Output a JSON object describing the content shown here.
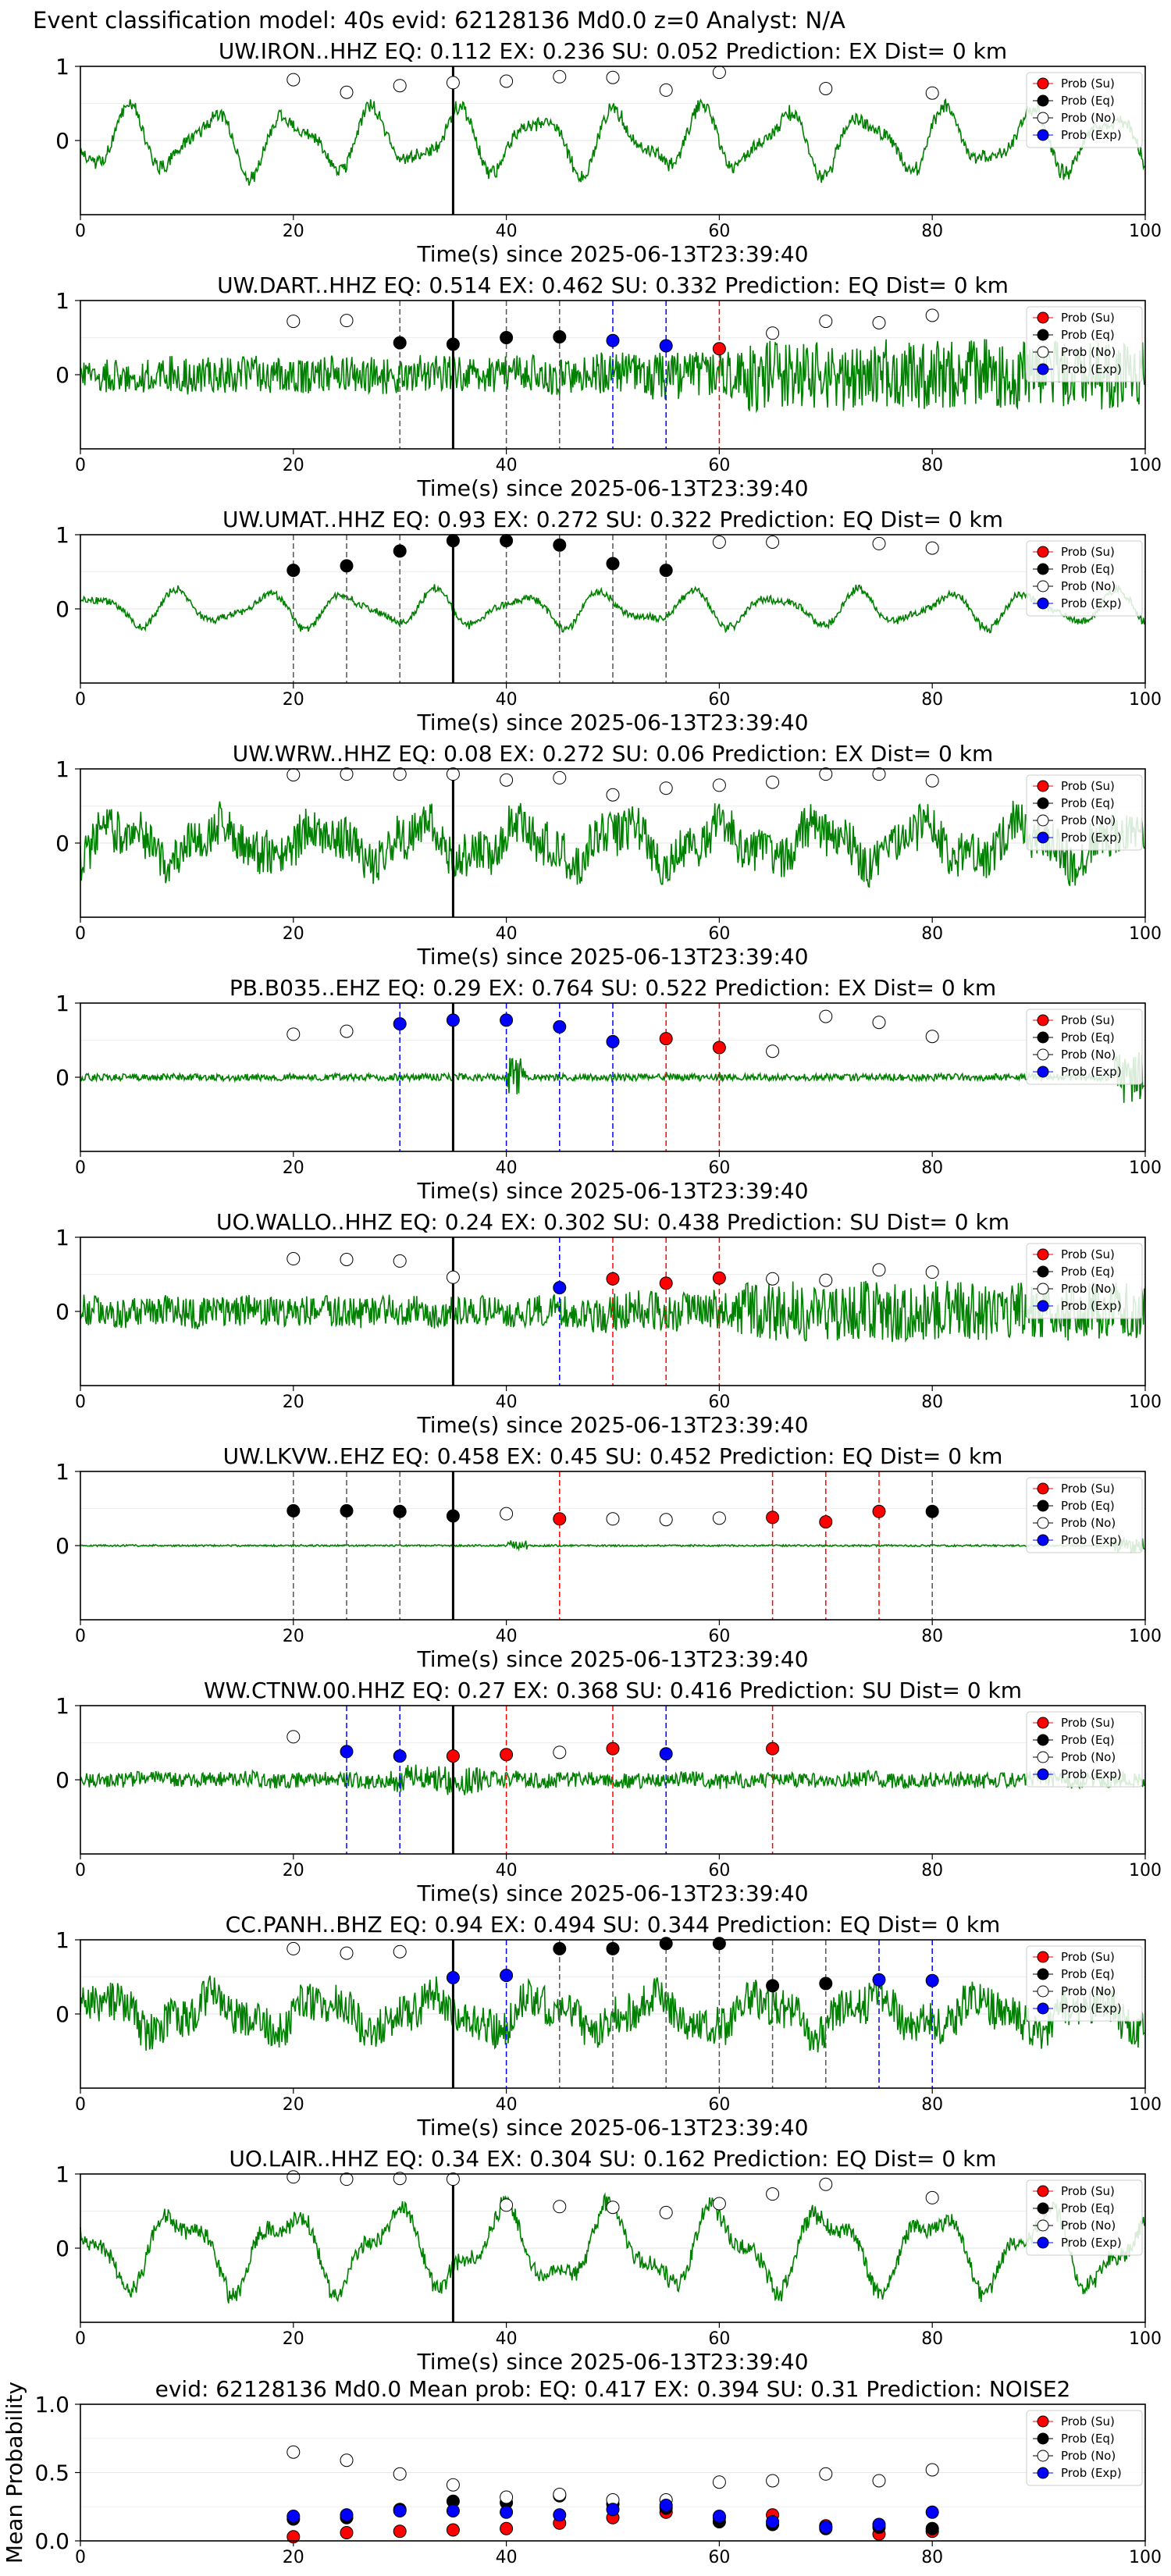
{
  "suptitle": "Event classification model: 40s evid: 62128136 Md0.0 z=0 Analyst: N/A",
  "legend_labels": [
    "Prob (Su)",
    "Prob (Eq)",
    "Prob (No)",
    "Prob (Exp)"
  ],
  "colors": {
    "su": "#ff0000",
    "eq": "#000000",
    "no": "#ffffff",
    "exp": "#0000ff",
    "wave": "#008000"
  },
  "chart_data": [
    {
      "type": "line",
      "title": "UW.IRON..HHZ   EQ: 0.112  EX: 0.236  SU: 0.052   Prediction: EX    Dist= 0 km",
      "xlabel": "Time(s) since 2025-06-13T23:39:40",
      "xlim": [
        0,
        100
      ],
      "ylim": [
        -1,
        1
      ],
      "xticks": [
        0,
        20,
        40,
        60,
        80,
        100
      ],
      "yticks": [
        0,
        1
      ],
      "amp": 0.55,
      "waveform": "lp",
      "pick_time": 35,
      "points": [
        [
          20,
          "no",
          0.82
        ],
        [
          25,
          "no",
          0.65
        ],
        [
          30,
          "no",
          0.74
        ],
        [
          35,
          "no",
          0.78
        ],
        [
          40,
          "no",
          0.8
        ],
        [
          45,
          "no",
          0.86
        ],
        [
          50,
          "no",
          0.85
        ],
        [
          55,
          "no",
          0.68
        ],
        [
          60,
          "no",
          0.92
        ],
        [
          70,
          "no",
          0.7
        ],
        [
          80,
          "no",
          0.64
        ]
      ],
      "vlines": []
    },
    {
      "type": "line",
      "title": "UW.DART..HHZ   EQ: 0.514  EX: 0.462  SU: 0.332   Prediction: EQ    Dist= 0 km",
      "xlabel": "Time(s) since 2025-06-13T23:39:40",
      "xlim": [
        0,
        100
      ],
      "ylim": [
        -1,
        1
      ],
      "xticks": [
        0,
        20,
        40,
        60,
        80,
        100
      ],
      "yticks": [
        0,
        1
      ],
      "amp": 0.35,
      "waveform": "noisy_burst",
      "pick_time": 35,
      "points": [
        [
          20,
          "no",
          0.72
        ],
        [
          25,
          "no",
          0.73
        ],
        [
          30,
          "eq",
          0.43
        ],
        [
          35,
          "eq",
          0.41
        ],
        [
          40,
          "eq",
          0.5
        ],
        [
          45,
          "eq",
          0.51
        ],
        [
          50,
          "exp",
          0.46
        ],
        [
          55,
          "exp",
          0.39
        ],
        [
          60,
          "su",
          0.35
        ],
        [
          65,
          "no",
          0.56
        ],
        [
          70,
          "no",
          0.72
        ],
        [
          75,
          "no",
          0.7
        ],
        [
          80,
          "no",
          0.8
        ]
      ],
      "vlines": [
        [
          30,
          "eq"
        ],
        [
          40,
          "eq"
        ],
        [
          45,
          "eq"
        ],
        [
          50,
          "exp"
        ],
        [
          55,
          "exp"
        ],
        [
          60,
          "su"
        ]
      ]
    },
    {
      "type": "line",
      "title": "UW.UMAT..HHZ   EQ: 0.93  EX: 0.272  SU: 0.322   Prediction: EQ    Dist= 0 km",
      "xlabel": "Time(s) since 2025-06-13T23:39:40",
      "xlim": [
        0,
        100
      ],
      "ylim": [
        -1,
        1
      ],
      "xticks": [
        0,
        20,
        40,
        60,
        80,
        100
      ],
      "yticks": [
        0,
        1
      ],
      "amp": 0.3,
      "waveform": "lp",
      "pick_time": 35,
      "points": [
        [
          20,
          "eq",
          0.52
        ],
        [
          25,
          "eq",
          0.58
        ],
        [
          30,
          "eq",
          0.78
        ],
        [
          35,
          "eq",
          0.92
        ],
        [
          40,
          "eq",
          0.92
        ],
        [
          45,
          "eq",
          0.86
        ],
        [
          50,
          "eq",
          0.61
        ],
        [
          55,
          "eq",
          0.52
        ],
        [
          60,
          "no",
          0.9
        ],
        [
          65,
          "no",
          0.9
        ],
        [
          75,
          "no",
          0.88
        ],
        [
          80,
          "no",
          0.82
        ]
      ],
      "vlines": [
        [
          20,
          "eq"
        ],
        [
          25,
          "eq"
        ],
        [
          30,
          "eq"
        ],
        [
          40,
          "eq"
        ],
        [
          45,
          "eq"
        ],
        [
          50,
          "eq"
        ],
        [
          55,
          "eq"
        ]
      ]
    },
    {
      "type": "line",
      "title": "UW.WRW..HHZ   EQ: 0.08  EX: 0.272  SU: 0.06   Prediction: EX    Dist= 0 km",
      "xlabel": "Time(s) since 2025-06-13T23:39:40",
      "xlim": [
        0,
        100
      ],
      "ylim": [
        -1,
        1
      ],
      "xticks": [
        0,
        20,
        40,
        60,
        80,
        100
      ],
      "yticks": [
        0,
        1
      ],
      "amp": 0.5,
      "waveform": "lp_noisy",
      "pick_time": 35,
      "points": [
        [
          20,
          "no",
          0.92
        ],
        [
          25,
          "no",
          0.93
        ],
        [
          30,
          "no",
          0.93
        ],
        [
          35,
          "no",
          0.93
        ],
        [
          40,
          "no",
          0.85
        ],
        [
          45,
          "no",
          0.88
        ],
        [
          50,
          "no",
          0.65
        ],
        [
          55,
          "no",
          0.74
        ],
        [
          60,
          "no",
          0.78
        ],
        [
          65,
          "no",
          0.82
        ],
        [
          70,
          "no",
          0.93
        ],
        [
          75,
          "no",
          0.93
        ],
        [
          80,
          "no",
          0.84
        ]
      ],
      "vlines": []
    },
    {
      "type": "line",
      "title": "PB.B035..EHZ   EQ: 0.29  EX: 0.764  SU: 0.522   Prediction: EX    Dist= 0 km",
      "xlabel": "Time(s) since 2025-06-13T23:39:40",
      "xlim": [
        0,
        100
      ],
      "ylim": [
        -1,
        1
      ],
      "xticks": [
        0,
        20,
        40,
        60,
        80,
        100
      ],
      "yticks": [
        0,
        1
      ],
      "amp": 0.08,
      "waveform": "quiet",
      "pick_time": 35,
      "points": [
        [
          20,
          "no",
          0.58
        ],
        [
          25,
          "no",
          0.62
        ],
        [
          30,
          "exp",
          0.72
        ],
        [
          35,
          "exp",
          0.77
        ],
        [
          40,
          "exp",
          0.77
        ],
        [
          45,
          "exp",
          0.68
        ],
        [
          50,
          "exp",
          0.48
        ],
        [
          55,
          "su",
          0.52
        ],
        [
          60,
          "su",
          0.4
        ],
        [
          65,
          "no",
          0.35
        ],
        [
          70,
          "no",
          0.82
        ],
        [
          75,
          "no",
          0.74
        ],
        [
          80,
          "no",
          0.55
        ]
      ],
      "vlines": [
        [
          30,
          "exp"
        ],
        [
          40,
          "exp"
        ],
        [
          45,
          "exp"
        ],
        [
          50,
          "exp"
        ],
        [
          55,
          "su"
        ],
        [
          60,
          "su"
        ]
      ]
    },
    {
      "type": "line",
      "title": "UO.WALLO..HHZ   EQ: 0.24  EX: 0.302  SU: 0.438   Prediction: SU    Dist= 0 km",
      "xlabel": "Time(s) since 2025-06-13T23:39:40",
      "xlim": [
        0,
        100
      ],
      "ylim": [
        -1,
        1
      ],
      "xticks": [
        0,
        20,
        40,
        60,
        80,
        100
      ],
      "yticks": [
        0,
        1
      ],
      "amp": 0.3,
      "waveform": "noisy_burst",
      "pick_time": 35,
      "points": [
        [
          20,
          "no",
          0.71
        ],
        [
          25,
          "no",
          0.7
        ],
        [
          30,
          "no",
          0.68
        ],
        [
          35,
          "no",
          0.46
        ],
        [
          45,
          "exp",
          0.32
        ],
        [
          50,
          "su",
          0.44
        ],
        [
          55,
          "su",
          0.38
        ],
        [
          60,
          "su",
          0.45
        ],
        [
          65,
          "no",
          0.44
        ],
        [
          70,
          "no",
          0.42
        ],
        [
          75,
          "no",
          0.56
        ],
        [
          80,
          "no",
          0.53
        ]
      ],
      "vlines": [
        [
          45,
          "exp"
        ],
        [
          50,
          "su"
        ],
        [
          55,
          "su"
        ],
        [
          60,
          "su"
        ]
      ]
    },
    {
      "type": "line",
      "title": "UW.LKVW..EHZ   EQ: 0.458  EX: 0.45  SU: 0.452   Prediction: EQ    Dist= 0 km",
      "xlabel": "Time(s) since 2025-06-13T23:39:40",
      "xlim": [
        0,
        100
      ],
      "ylim": [
        -1,
        1
      ],
      "xticks": [
        0,
        20,
        40,
        60,
        80,
        100
      ],
      "yticks": [
        0,
        1
      ],
      "amp": 0.02,
      "waveform": "quiet",
      "pick_time": 35,
      "points": [
        [
          20,
          "eq",
          0.47
        ],
        [
          25,
          "eq",
          0.47
        ],
        [
          30,
          "eq",
          0.46
        ],
        [
          35,
          "eq",
          0.4
        ],
        [
          40,
          "no",
          0.43
        ],
        [
          45,
          "su",
          0.36
        ],
        [
          50,
          "no",
          0.36
        ],
        [
          55,
          "no",
          0.35
        ],
        [
          60,
          "no",
          0.37
        ],
        [
          65,
          "su",
          0.38
        ],
        [
          70,
          "su",
          0.32
        ],
        [
          75,
          "su",
          0.46
        ],
        [
          80,
          "eq",
          0.46
        ]
      ],
      "vlines": [
        [
          20,
          "eq"
        ],
        [
          25,
          "eq"
        ],
        [
          30,
          "eq"
        ],
        [
          45,
          "su"
        ],
        [
          65,
          "su"
        ],
        [
          70,
          "su"
        ],
        [
          75,
          "su"
        ],
        [
          80,
          "eq"
        ]
      ]
    },
    {
      "type": "line",
      "title": "WW.CTNW.00.HHZ   EQ: 0.27  EX: 0.368  SU: 0.416   Prediction: SU    Dist= 0 km",
      "xlabel": "Time(s) since 2025-06-13T23:39:40",
      "xlim": [
        0,
        100
      ],
      "ylim": [
        -1,
        1
      ],
      "xticks": [
        0,
        20,
        40,
        60,
        80,
        100
      ],
      "yticks": [
        0,
        1
      ],
      "amp": 0.15,
      "waveform": "noisy",
      "pick_time": 35,
      "points": [
        [
          20,
          "no",
          0.58
        ],
        [
          25,
          "exp",
          0.38
        ],
        [
          30,
          "exp",
          0.32
        ],
        [
          35,
          "su",
          0.32
        ],
        [
          40,
          "su",
          0.34
        ],
        [
          45,
          "no",
          0.37
        ],
        [
          50,
          "su",
          0.42
        ],
        [
          55,
          "exp",
          0.35
        ],
        [
          65,
          "su",
          0.42
        ]
      ],
      "vlines": [
        [
          25,
          "exp"
        ],
        [
          30,
          "exp"
        ],
        [
          40,
          "su"
        ],
        [
          50,
          "su"
        ],
        [
          55,
          "exp"
        ],
        [
          65,
          "su"
        ]
      ]
    },
    {
      "type": "line",
      "title": "CC.PANH..BHZ   EQ: 0.94  EX: 0.494  SU: 0.344   Prediction: EQ    Dist= 0 km",
      "xlabel": "Time(s) since 2025-06-13T23:39:40",
      "xlim": [
        0,
        100
      ],
      "ylim": [
        -1,
        1
      ],
      "xticks": [
        0,
        20,
        40,
        60,
        80,
        100
      ],
      "yticks": [
        0,
        1
      ],
      "amp": 0.45,
      "waveform": "lp_noisy",
      "pick_time": 35,
      "points": [
        [
          20,
          "no",
          0.88
        ],
        [
          25,
          "no",
          0.82
        ],
        [
          30,
          "no",
          0.84
        ],
        [
          35,
          "exp",
          0.49
        ],
        [
          40,
          "exp",
          0.52
        ],
        [
          45,
          "eq",
          0.88
        ],
        [
          50,
          "eq",
          0.88
        ],
        [
          55,
          "eq",
          0.95
        ],
        [
          60,
          "eq",
          0.95
        ],
        [
          65,
          "eq",
          0.38
        ],
        [
          70,
          "eq",
          0.41
        ],
        [
          75,
          "exp",
          0.46
        ],
        [
          80,
          "exp",
          0.45
        ]
      ],
      "vlines": [
        [
          40,
          "exp"
        ],
        [
          45,
          "eq"
        ],
        [
          50,
          "eq"
        ],
        [
          55,
          "eq"
        ],
        [
          60,
          "eq"
        ],
        [
          65,
          "eq"
        ],
        [
          70,
          "eq"
        ],
        [
          75,
          "exp"
        ],
        [
          80,
          "exp"
        ]
      ]
    },
    {
      "type": "line",
      "title": "UO.LAIR..HHZ   EQ: 0.34  EX: 0.304  SU: 0.162   Prediction: EQ    Dist= 0 km",
      "xlabel": "Time(s) since 2025-06-13T23:39:40",
      "xlim": [
        0,
        100
      ],
      "ylim": [
        -1,
        1
      ],
      "xticks": [
        0,
        20,
        40,
        60,
        80,
        100
      ],
      "yticks": [
        0,
        1
      ],
      "amp": 0.7,
      "waveform": "lp",
      "pick_time": 35,
      "points": [
        [
          20,
          "no",
          0.96
        ],
        [
          25,
          "no",
          0.93
        ],
        [
          30,
          "no",
          0.94
        ],
        [
          35,
          "no",
          0.93
        ],
        [
          40,
          "no",
          0.58
        ],
        [
          45,
          "no",
          0.56
        ],
        [
          50,
          "no",
          0.55
        ],
        [
          55,
          "no",
          0.48
        ],
        [
          60,
          "no",
          0.6
        ],
        [
          65,
          "no",
          0.73
        ],
        [
          70,
          "no",
          0.86
        ],
        [
          80,
          "no",
          0.68
        ]
      ],
      "vlines": []
    },
    {
      "type": "scatter",
      "title": "evid: 62128136  Md0.0   Mean prob:   EQ: 0.417  EX: 0.394  SU: 0.31   Prediction: NOISE2",
      "xlabel": "",
      "ylabel": "Mean Probability",
      "xlim": [
        0,
        100
      ],
      "ylim": [
        0,
        1
      ],
      "xticks": [
        0,
        20,
        40,
        60,
        80,
        100
      ],
      "yticks": [
        0.0,
        0.5,
        1.0
      ],
      "series": [
        {
          "name": "Prob (Su)",
          "x": [
            20,
            25,
            30,
            35,
            40,
            45,
            50,
            55,
            60,
            65,
            70,
            75,
            80
          ],
          "y": [
            0.03,
            0.06,
            0.07,
            0.08,
            0.09,
            0.13,
            0.17,
            0.21,
            0.17,
            0.19,
            0.11,
            0.05,
            0.07
          ]
        },
        {
          "name": "Prob (Eq)",
          "x": [
            20,
            25,
            30,
            35,
            40,
            45,
            50,
            55,
            60,
            65,
            70,
            75,
            80
          ],
          "y": [
            0.16,
            0.17,
            0.23,
            0.29,
            0.28,
            0.33,
            0.27,
            0.24,
            0.14,
            0.12,
            0.09,
            0.1,
            0.09
          ]
        },
        {
          "name": "Prob (No)",
          "x": [
            20,
            25,
            30,
            35,
            40,
            45,
            50,
            55,
            60,
            65,
            70,
            75,
            80
          ],
          "y": [
            0.65,
            0.59,
            0.49,
            0.41,
            0.32,
            0.34,
            0.3,
            0.3,
            0.43,
            0.44,
            0.49,
            0.44,
            0.52
          ]
        },
        {
          "name": "Prob (Exp)",
          "x": [
            20,
            25,
            30,
            35,
            40,
            45,
            50,
            55,
            60,
            65,
            70,
            75,
            80
          ],
          "y": [
            0.18,
            0.19,
            0.22,
            0.22,
            0.21,
            0.19,
            0.23,
            0.26,
            0.18,
            0.14,
            0.1,
            0.12,
            0.21
          ]
        }
      ]
    }
  ]
}
